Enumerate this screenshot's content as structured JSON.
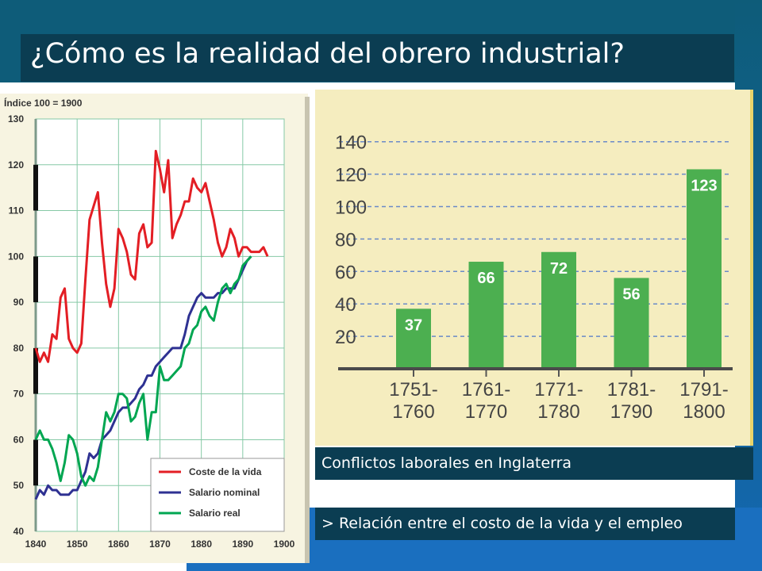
{
  "title": "¿Cómo es la realidad del obrero industrial?",
  "captions": {
    "bar_chart": "Conflictos laborales en Inglaterra",
    "relation": "> Relación entre el costo de la vida y el empleo"
  },
  "colors": {
    "dark_panel": "#0b3d52",
    "background_blue": "#0e5c79",
    "cost_line": "#e31e24",
    "nominal_line": "#2e3192",
    "real_line": "#00a651",
    "bar_green": "#4caf50"
  },
  "chart_data": [
    {
      "type": "line",
      "index_note": "Índice 100 = 1900",
      "x_ticks": [
        1840,
        1850,
        1860,
        1870,
        1880,
        1890,
        1900
      ],
      "y_ticks": [
        40,
        50,
        60,
        70,
        80,
        90,
        100,
        110,
        120,
        130
      ],
      "xlim": [
        1840,
        1900
      ],
      "ylim": [
        40,
        130
      ],
      "grid": true,
      "legend_position": "bottom-right",
      "series": [
        {
          "name": "Coste de la vida",
          "color": "#e31e24",
          "points": [
            [
              1840,
              80
            ],
            [
              1841,
              77
            ],
            [
              1842,
              79
            ],
            [
              1843,
              77
            ],
            [
              1844,
              83
            ],
            [
              1845,
              82
            ],
            [
              1846,
              91
            ],
            [
              1847,
              93
            ],
            [
              1848,
              82
            ],
            [
              1849,
              80
            ],
            [
              1850,
              79
            ],
            [
              1851,
              81
            ],
            [
              1852,
              95
            ],
            [
              1853,
              108
            ],
            [
              1854,
              111
            ],
            [
              1855,
              114
            ],
            [
              1856,
              103
            ],
            [
              1857,
              94
            ],
            [
              1858,
              89
            ],
            [
              1859,
              93
            ],
            [
              1860,
              106
            ],
            [
              1861,
              104
            ],
            [
              1862,
              101
            ],
            [
              1863,
              96
            ],
            [
              1864,
              95
            ],
            [
              1865,
              105
            ],
            [
              1866,
              107
            ],
            [
              1867,
              102
            ],
            [
              1868,
              103
            ],
            [
              1869,
              123
            ],
            [
              1870,
              119
            ],
            [
              1871,
              114
            ],
            [
              1872,
              121
            ],
            [
              1873,
              104
            ],
            [
              1874,
              107
            ],
            [
              1875,
              109
            ],
            [
              1876,
              112
            ],
            [
              1877,
              112
            ],
            [
              1878,
              117
            ],
            [
              1879,
              115
            ],
            [
              1880,
              114
            ],
            [
              1881,
              116
            ],
            [
              1882,
              112
            ],
            [
              1883,
              108
            ],
            [
              1884,
              103
            ],
            [
              1885,
              100
            ],
            [
              1886,
              102
            ],
            [
              1887,
              106
            ],
            [
              1888,
              104
            ],
            [
              1889,
              100
            ],
            [
              1890,
              102
            ],
            [
              1891,
              102
            ],
            [
              1892,
              101
            ],
            [
              1893,
              101
            ],
            [
              1894,
              101
            ],
            [
              1895,
              102
            ],
            [
              1896,
              100
            ]
          ]
        },
        {
          "name": "Salario nominal",
          "color": "#2e3192",
          "points": [
            [
              1840,
              47
            ],
            [
              1841,
              49
            ],
            [
              1842,
              48
            ],
            [
              1843,
              50
            ],
            [
              1844,
              49
            ],
            [
              1845,
              49
            ],
            [
              1846,
              48
            ],
            [
              1847,
              48
            ],
            [
              1848,
              48
            ],
            [
              1849,
              49
            ],
            [
              1850,
              49
            ],
            [
              1851,
              51
            ],
            [
              1852,
              53
            ],
            [
              1853,
              57
            ],
            [
              1854,
              56
            ],
            [
              1855,
              57
            ],
            [
              1856,
              60
            ],
            [
              1857,
              61
            ],
            [
              1858,
              62
            ],
            [
              1859,
              64
            ],
            [
              1860,
              66
            ],
            [
              1861,
              67
            ],
            [
              1862,
              67
            ],
            [
              1863,
              68
            ],
            [
              1864,
              69
            ],
            [
              1865,
              71
            ],
            [
              1866,
              72
            ],
            [
              1867,
              74
            ],
            [
              1868,
              74
            ],
            [
              1869,
              76
            ],
            [
              1870,
              77
            ],
            [
              1871,
              78
            ],
            [
              1872,
              79
            ],
            [
              1873,
              80
            ],
            [
              1874,
              80
            ],
            [
              1875,
              80
            ],
            [
              1876,
              83
            ],
            [
              1877,
              87
            ],
            [
              1878,
              89
            ],
            [
              1879,
              91
            ],
            [
              1880,
              92
            ],
            [
              1881,
              91
            ],
            [
              1882,
              91
            ],
            [
              1883,
              91
            ],
            [
              1884,
              92
            ],
            [
              1885,
              92
            ],
            [
              1886,
              93
            ],
            [
              1887,
              93
            ],
            [
              1888,
              93
            ],
            [
              1889,
              95
            ],
            [
              1890,
              97
            ],
            [
              1891,
              99
            ],
            [
              1892,
              100
            ]
          ]
        },
        {
          "name": "Salario real",
          "color": "#00a651",
          "points": [
            [
              1840,
              60
            ],
            [
              1841,
              62
            ],
            [
              1842,
              60
            ],
            [
              1843,
              60
            ],
            [
              1844,
              58
            ],
            [
              1845,
              55
            ],
            [
              1846,
              51
            ],
            [
              1847,
              55
            ],
            [
              1848,
              61
            ],
            [
              1849,
              60
            ],
            [
              1850,
              57
            ],
            [
              1851,
              52
            ],
            [
              1852,
              50
            ],
            [
              1853,
              52
            ],
            [
              1854,
              51
            ],
            [
              1855,
              54
            ],
            [
              1856,
              60
            ],
            [
              1857,
              66
            ],
            [
              1858,
              64
            ],
            [
              1859,
              66
            ],
            [
              1860,
              70
            ],
            [
              1861,
              70
            ],
            [
              1862,
              69
            ],
            [
              1863,
              64
            ],
            [
              1864,
              65
            ],
            [
              1865,
              68
            ],
            [
              1866,
              70
            ],
            [
              1867,
              60
            ],
            [
              1868,
              66
            ],
            [
              1869,
              66
            ],
            [
              1870,
              76
            ],
            [
              1871,
              73
            ],
            [
              1872,
              73
            ],
            [
              1873,
              74
            ],
            [
              1874,
              75
            ],
            [
              1875,
              76
            ],
            [
              1876,
              80
            ],
            [
              1877,
              81
            ],
            [
              1878,
              84
            ],
            [
              1879,
              85
            ],
            [
              1880,
              88
            ],
            [
              1881,
              89
            ],
            [
              1882,
              87
            ],
            [
              1883,
              86
            ],
            [
              1884,
              90
            ],
            [
              1885,
              93
            ],
            [
              1886,
              94
            ],
            [
              1887,
              92
            ],
            [
              1888,
              94
            ],
            [
              1889,
              95
            ],
            [
              1890,
              98
            ],
            [
              1891,
              99
            ],
            [
              1892,
              100
            ]
          ]
        }
      ]
    },
    {
      "type": "bar",
      "categories": [
        "1751-\n1760",
        "1761-\n1770",
        "1771-\n1780",
        "1781-\n1790",
        "1791-\n1800"
      ],
      "values": [
        37,
        66,
        72,
        56,
        123
      ],
      "y_ticks": [
        20,
        40,
        60,
        80,
        100,
        120,
        140
      ],
      "ylim": [
        0,
        140
      ],
      "grid": true,
      "data_labels": true
    }
  ]
}
